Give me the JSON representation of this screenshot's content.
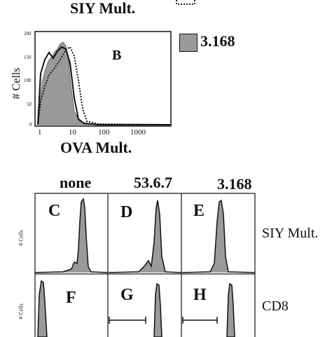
{
  "top_header": {
    "title": "SIY Mult."
  },
  "legend": {
    "items": [
      {
        "label": "3.168",
        "fill": "#9a9a9a"
      }
    ]
  },
  "panel_b": {
    "letter": "B",
    "ylabel": "# Cells",
    "xlabel": "OVA Mult.",
    "yticks": [
      "200",
      "150",
      "100",
      "50",
      "0"
    ],
    "xticks": [
      "1",
      "10",
      "100",
      "1000"
    ]
  },
  "bottom_figure": {
    "columns": [
      "none",
      "53.6.7",
      "3.168"
    ],
    "row_labels": [
      "SIY Mult.",
      "CD8"
    ],
    "ylabel": "# Cells",
    "panels_row1": [
      "C",
      "D",
      "E"
    ],
    "panels_row2": [
      "F",
      "G",
      "H"
    ]
  },
  "chart_data": {
    "type": "area",
    "title": "",
    "xlabel": "OVA Mult.",
    "ylabel": "# Cells",
    "x_scale": "log",
    "xlim": [
      1,
      10000
    ],
    "ylim": [
      0,
      200
    ],
    "series": [
      {
        "name": "3.168",
        "style": "filled-gray",
        "x": [
          1,
          1.3,
          1.6,
          2,
          2.5,
          3,
          3.5,
          4,
          5,
          6,
          7,
          8,
          10,
          14,
          20,
          50,
          100,
          10000
        ],
        "values": [
          0,
          90,
          120,
          140,
          150,
          160,
          165,
          175,
          180,
          170,
          140,
          90,
          30,
          8,
          3,
          1,
          0,
          0
        ]
      }
    ],
    "grid": false
  }
}
